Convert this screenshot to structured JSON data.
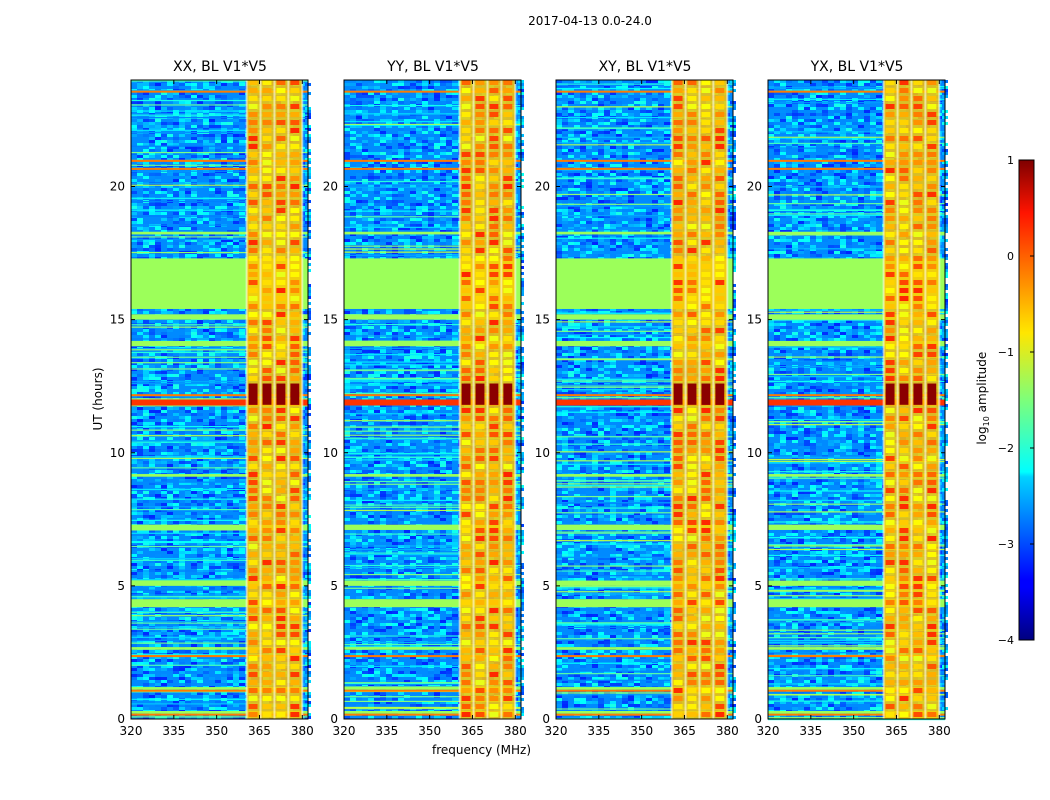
{
  "suptitle": "2017-04-13 0.0-24.0",
  "chart_data": {
    "type": "heatmap",
    "panels": [
      {
        "title": "XX, BL V1*V5",
        "pol": "XX"
      },
      {
        "title": "YY, BL V1*V5",
        "pol": "YY"
      },
      {
        "title": "XY, BL V1*V5",
        "pol": "XY"
      },
      {
        "title": "YX, BL V1*V5",
        "pol": "YX"
      }
    ],
    "xlabel": "frequency (MHz)",
    "ylabel": "UT (hours)",
    "xlim": [
      320,
      382
    ],
    "ylim": [
      0,
      24
    ],
    "xticks": [
      320,
      335,
      350,
      365,
      380
    ],
    "xtick_labels": [
      "320",
      "335",
      "350",
      "365",
      "380"
    ],
    "yticks": [
      0,
      5,
      10,
      15,
      20
    ],
    "ytick_labels": [
      "0",
      "5",
      "10",
      "15",
      "20"
    ],
    "colorbar": {
      "label_main": "log",
      "label_sub": "10",
      "label_rest": " amplitude",
      "range": [
        -4,
        1
      ],
      "ticks": [
        1,
        0,
        -1,
        -2,
        -3,
        -4
      ],
      "tick_labels": [
        "1",
        "0",
        "−1",
        "−2",
        "−3",
        "−4"
      ],
      "colormap": "jet"
    },
    "features": {
      "flagged_band_hours": [
        15.4,
        17.3
      ],
      "rfi_band_mhz": [
        360.5,
        380
      ],
      "strong_event_hours": [
        11.8,
        12.6
      ]
    }
  }
}
